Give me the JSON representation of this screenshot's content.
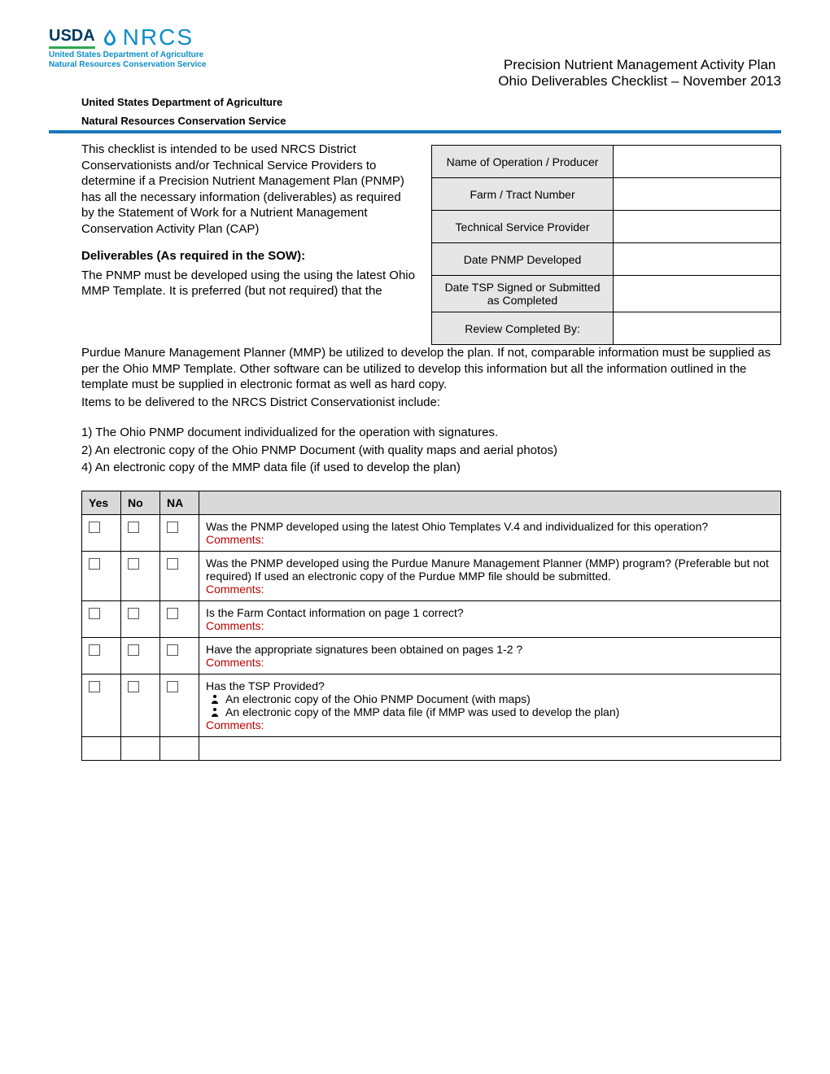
{
  "header": {
    "usda": "USDA",
    "nrcs": "NRCS",
    "logo_sub1": "United States Department of Agriculture",
    "logo_sub2": "Natural Resources Conservation Service",
    "title1": "Precision Nutrient Management Activity Plan",
    "title2": "Ohio Deliverables Checklist – November 2013",
    "org1": "United States Department of Agriculture",
    "org2": "Natural Resources Conservation Service"
  },
  "intro": {
    "p1": "This checklist is intended to be used NRCS District Conservationists and/or Technical Service Providers to determine if a Precision Nutrient Management Plan (PNMP) has all the necessary information (deliverables) as required by the Statement of Work for a Nutrient Management Conservation Activity Plan (CAP)",
    "heading": "Deliverables (As required in the SOW):",
    "p2": "The PNMP must be developed using the using the latest Ohio MMP Template. It is preferred (but not required) that the"
  },
  "info_table": {
    "rows": [
      {
        "label": "Name of Operation / Producer",
        "value": ""
      },
      {
        "label": "Farm / Tract Number",
        "value": ""
      },
      {
        "label": "Technical Service Provider",
        "value": ""
      },
      {
        "label": "Date PNMP Developed",
        "value": ""
      },
      {
        "label": "Date TSP Signed  or Submitted as Completed",
        "value": ""
      },
      {
        "label": "Review Completed By:",
        "value": ""
      }
    ]
  },
  "body": {
    "p1": "Purdue Manure Management Planner (MMP) be utilized to develop the plan.  If not, comparable information must be supplied as per the Ohio MMP Template.  Other software can be utilized to develop this information but all the information outlined in the template must be supplied in electronic format as well as hard copy.",
    "p2": "Items to be delivered to the NRCS District Conservationist include:",
    "items": [
      "1) The Ohio PNMP document individualized for the operation with signatures.",
      "2) An electronic copy of the Ohio PNMP Document (with quality maps and aerial photos)",
      "4) An electronic copy of the MMP data file (if used to develop the plan)"
    ]
  },
  "checklist": {
    "headers": {
      "yes": "Yes",
      "no": "No",
      "na": "NA",
      "q": ""
    },
    "comments_label": "Comments:",
    "rows": [
      {
        "question": "Was the PNMP developed using the latest Ohio Templates V.4 and individualized for this operation?",
        "bullets": []
      },
      {
        "question": "Was the PNMP developed using the Purdue Manure Management Planner (MMP) program?  (Preferable but not required)  If used an electronic copy of the Purdue MMP file should be submitted.",
        "bullets": []
      },
      {
        "question": "Is the Farm Contact information on page 1 correct?",
        "bullets": []
      },
      {
        "question": "Have the appropriate signatures been obtained on pages 1-2 ?",
        "bullets": []
      },
      {
        "question": "Has the TSP Provided?",
        "bullets": [
          "An electronic copy of the Ohio PNMP Document (with maps)",
          "An electronic copy of the MMP data file (if MMP was used to develop the plan)"
        ]
      }
    ]
  }
}
